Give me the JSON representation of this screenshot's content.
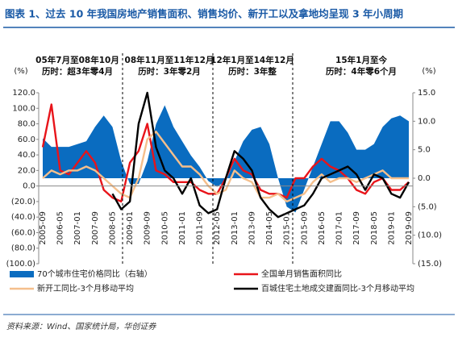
{
  "chart_data": {
    "type": "combo",
    "title": "图表 1、过去 10 年我国房地产销售面积、销售均价、新开工以及拿地均呈现 3 年小周期",
    "y_label": "(%)",
    "y2_label": "(%)",
    "source": "资料来源：Wind、国家统计局，华创证券",
    "annotations": [
      {
        "period": "05年7月至08年10月",
        "duration": "历时：超3年零4月"
      },
      {
        "period": "08年11月至11年12月",
        "duration": "历时：3年零2月"
      },
      {
        "period": "12年1月至14年12月",
        "duration": "历时：3年整"
      },
      {
        "period": "15年1月至今",
        "duration": "历时：4年零6个月"
      }
    ],
    "categories": [
      "2005-09",
      null,
      "2006-05",
      null,
      "2007-01",
      null,
      "2007-09",
      null,
      "2008-05",
      null,
      "2009-01",
      null,
      "2009-09",
      null,
      "2010-05",
      null,
      "2011-01",
      null,
      "2011-09",
      null,
      "2012-05",
      null,
      "2013-01",
      null,
      "2013-09",
      null,
      "2014-05",
      null,
      "2015-01",
      null,
      "2015-09",
      null,
      "2016-05",
      null,
      "2017-01",
      null,
      "2017-09",
      null,
      "2018-05",
      null,
      "2019-01",
      null,
      "2019-09"
    ],
    "ylim": [
      -100,
      120
    ],
    "yticks": [
      {
        "value": 120,
        "label": "120.0"
      },
      {
        "value": 100,
        "label": "100.0"
      },
      {
        "value": 80,
        "label": "80.0"
      },
      {
        "value": 60,
        "label": "60.0"
      },
      {
        "value": 40,
        "label": "40.0"
      },
      {
        "value": 20,
        "label": "20.0"
      },
      {
        "value": 0,
        "label": "0.0"
      },
      {
        "value": -20,
        "label": "(20.0)"
      },
      {
        "value": -40,
        "label": "(40.0)"
      },
      {
        "value": -60,
        "label": "(60.0)"
      },
      {
        "value": -80,
        "label": "(80.0)"
      },
      {
        "value": -100,
        "label": "(100.0)"
      }
    ],
    "y2lim": [
      -15,
      15
    ],
    "y2ticks": [
      {
        "value": 15,
        "label": "15.0"
      },
      {
        "value": 10,
        "label": "10.0"
      },
      {
        "value": 5,
        "label": "5.0"
      },
      {
        "value": 0,
        "label": "0.0"
      },
      {
        "value": -5,
        "label": "(5.0)"
      },
      {
        "value": -10,
        "label": "(10.0)"
      },
      {
        "value": -15,
        "label": "(15.0)"
      }
    ],
    "series": [
      {
        "name": "70个城市住宅价格同比（右轴）",
        "type": "area",
        "axis": "y2",
        "color": "#0a6cc0",
        "values": [
          7,
          5.5,
          5.5,
          5.5,
          6,
          6.5,
          9,
          11,
          9,
          3,
          -1,
          -1,
          3,
          9.5,
          12.8,
          9,
          6.5,
          4,
          2,
          -0.5,
          -1.5,
          -0.5,
          3,
          6.5,
          8.5,
          9,
          6,
          0,
          -5,
          -6,
          -2,
          2,
          6,
          10,
          10,
          8,
          5,
          5,
          6,
          9,
          10.5,
          11,
          10
        ]
      },
      {
        "name": "全国单月销售面积同比",
        "type": "line",
        "color": "#e8141a",
        "values": [
          50,
          105,
          20,
          15,
          30,
          45,
          30,
          -5,
          -15,
          -20,
          30,
          45,
          80,
          20,
          15,
          5,
          5,
          5,
          -5,
          -10,
          -10,
          10,
          35,
          20,
          15,
          -5,
          -10,
          -10,
          -15,
          10,
          10,
          25,
          35,
          25,
          20,
          10,
          -5,
          -10,
          5,
          10,
          -5,
          -5,
          5
        ]
      },
      {
        "name": "新开工同比-3个月移动平均",
        "type": "line",
        "color": "#f5bf8c",
        "values": [
          10,
          20,
          15,
          20,
          20,
          25,
          20,
          10,
          0,
          -10,
          -15,
          10,
          60,
          70,
          55,
          40,
          25,
          25,
          15,
          0,
          -10,
          -5,
          20,
          10,
          5,
          -15,
          -15,
          -10,
          -20,
          -15,
          -10,
          5,
          15,
          5,
          10,
          10,
          5,
          10,
          15,
          20,
          10,
          10,
          10
        ]
      },
      {
        "name": "百城住宅土地成交建面同比-3个月移动平均",
        "type": "line",
        "color": "#000000",
        "values": [
          null,
          null,
          null,
          null,
          null,
          null,
          null,
          null,
          -10,
          -30,
          -20,
          80,
          120,
          50,
          20,
          10,
          -10,
          10,
          -25,
          -35,
          -30,
          10,
          45,
          35,
          20,
          -15,
          -30,
          -40,
          -35,
          -30,
          -25,
          -10,
          10,
          15,
          20,
          25,
          15,
          -5,
          15,
          10,
          -10,
          -15,
          5
        ]
      }
    ]
  }
}
